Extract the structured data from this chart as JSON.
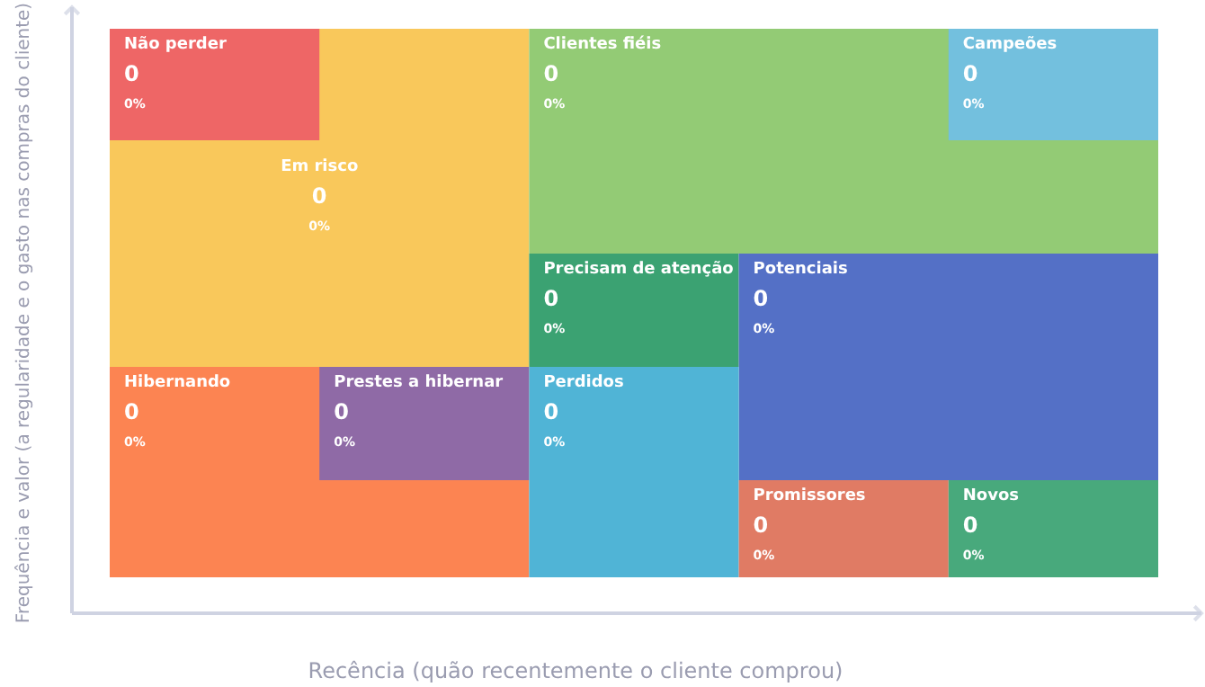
{
  "chart_data": {
    "type": "other",
    "xlabel": "Recência (quão recentemente o cliente comprou)",
    "ylabel": "Frequência e valor (a regularidade e o gasto nas compras do cliente)",
    "categories": [
      "Em risco",
      "Clientes fiéis",
      "Hibernando",
      "Não perder",
      "Campeões",
      "Precisam de atenção",
      "Potenciais",
      "Prestes a hibernar",
      "Perdidos",
      "Promissores",
      "Novos"
    ],
    "values": [
      0,
      0,
      0,
      0,
      0,
      0,
      0,
      0,
      0,
      0,
      0
    ],
    "data_labels": true,
    "annotations": [
      "0%",
      "0%",
      "0%",
      "0%",
      "0%",
      "0%",
      "0%",
      "0%",
      "0%",
      "0%",
      "0%"
    ],
    "colors": [
      "#f9c85b",
      "#93cb75",
      "#fc8452",
      "#ee6666",
      "#73c0de",
      "#3ba272",
      "#5470c6",
      "#8f6aa6",
      "#50b4d6",
      "#e07b64",
      "#48a97c"
    ]
  }
}
